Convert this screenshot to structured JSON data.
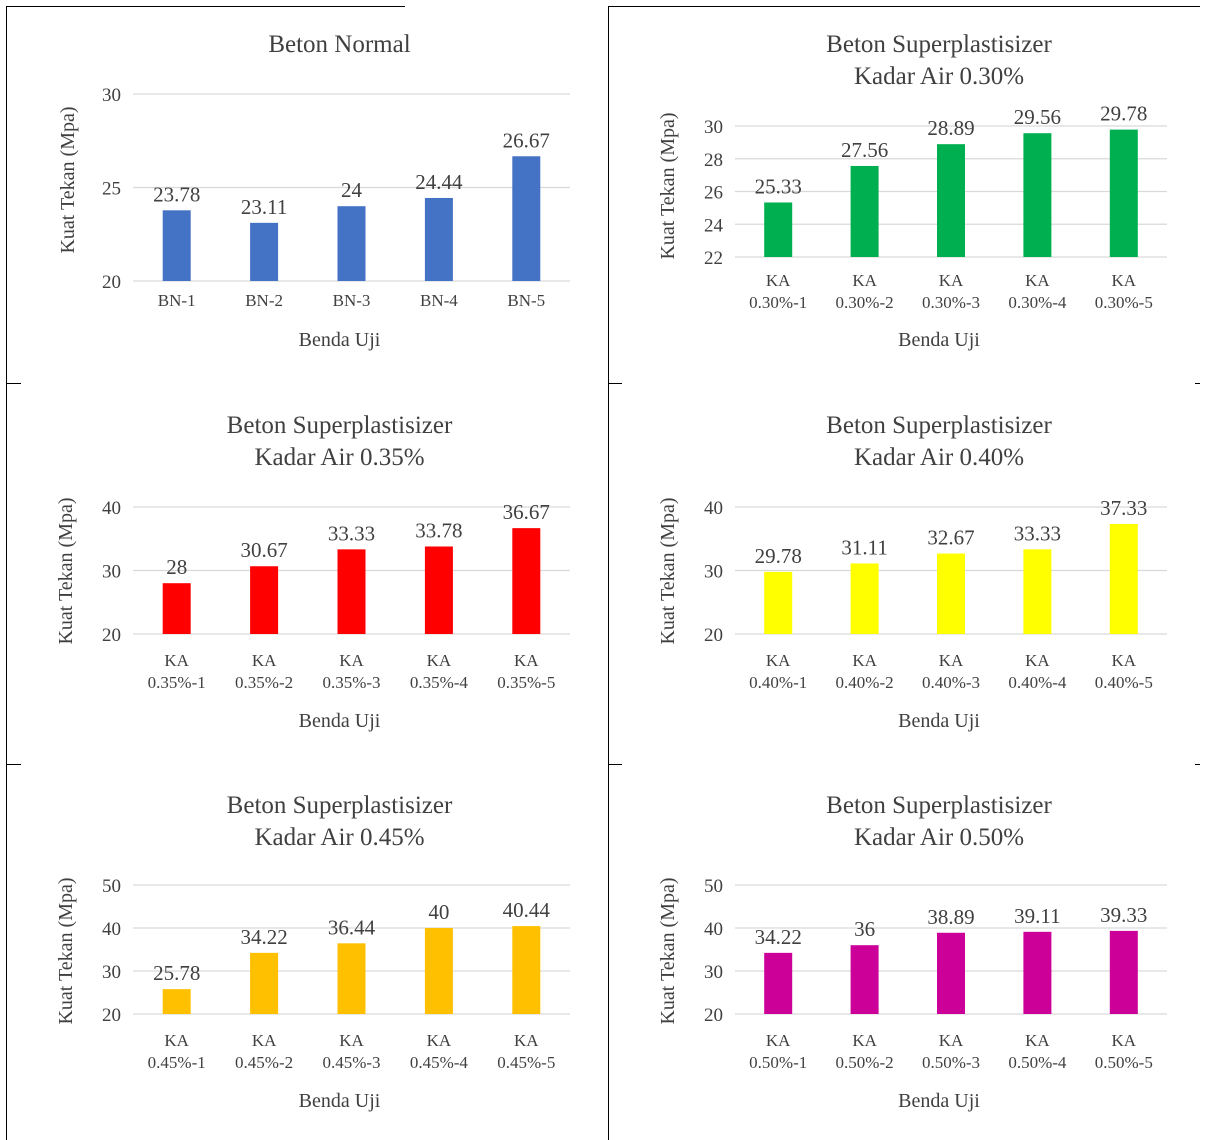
{
  "chart_data": [
    {
      "type": "bar",
      "title": [
        "Beton Normal"
      ],
      "xlabel": "Benda Uji",
      "ylabel": "Kuat Tekan (Mpa)",
      "ylim": [
        20,
        30
      ],
      "yticks": [
        20,
        25,
        30
      ],
      "grid": true,
      "legend": "none",
      "color": "#4472C4",
      "categories": [
        [
          "BN-1"
        ],
        [
          "BN-2"
        ],
        [
          "BN-3"
        ],
        [
          "BN-4"
        ],
        [
          "BN-5"
        ]
      ],
      "values": [
        23.78,
        23.11,
        24,
        24.44,
        26.67
      ],
      "data_labels": [
        "23.78",
        "23.11",
        "24",
        "24.44",
        "26.67"
      ]
    },
    {
      "type": "bar",
      "title": [
        "Beton Superplastisizer",
        "Kadar Air 0.30%"
      ],
      "xlabel": "Benda Uji",
      "ylabel": "Kuat Tekan (Mpa)",
      "ylim": [
        22,
        30
      ],
      "yticks": [
        22,
        24,
        26,
        28,
        30
      ],
      "grid": true,
      "legend": "none",
      "color": "#00B050",
      "categories": [
        [
          "KA",
          "0.30%-1"
        ],
        [
          "KA",
          "0.30%-2"
        ],
        [
          "KA",
          "0.30%-3"
        ],
        [
          "KA",
          "0.30%-4"
        ],
        [
          "KA",
          "0.30%-5"
        ]
      ],
      "values": [
        25.33,
        27.56,
        28.89,
        29.56,
        29.78
      ],
      "data_labels": [
        "25.33",
        "27.56",
        "28.89",
        "29.56",
        "29.78"
      ]
    },
    {
      "type": "bar",
      "title": [
        "Beton Superplastisizer",
        "Kadar Air 0.35%"
      ],
      "xlabel": "Benda Uji",
      "ylabel": "Kuat Tekan (Mpa)",
      "ylim": [
        20,
        40
      ],
      "yticks": [
        20,
        30,
        40
      ],
      "grid": true,
      "legend": "none",
      "color": "#FF0000",
      "categories": [
        [
          "KA",
          "0.35%-1"
        ],
        [
          "KA",
          "0.35%-2"
        ],
        [
          "KA",
          "0.35%-3"
        ],
        [
          "KA",
          "0.35%-4"
        ],
        [
          "KA",
          "0.35%-5"
        ]
      ],
      "values": [
        28,
        30.67,
        33.33,
        33.78,
        36.67
      ],
      "data_labels": [
        "28",
        "30.67",
        "33.33",
        "33.78",
        "36.67"
      ]
    },
    {
      "type": "bar",
      "title": [
        "Beton Superplastisizer",
        "Kadar Air 0.40%"
      ],
      "xlabel": "Benda Uji",
      "ylabel": "Kuat Tekan (Mpa)",
      "ylim": [
        20,
        40
      ],
      "yticks": [
        20,
        30,
        40
      ],
      "grid": true,
      "legend": "none",
      "color": "#FFFF00",
      "categories": [
        [
          "KA",
          "0.40%-1"
        ],
        [
          "KA",
          "0.40%-2"
        ],
        [
          "KA",
          "0.40%-3"
        ],
        [
          "KA",
          "0.40%-4"
        ],
        [
          "KA",
          "0.40%-5"
        ]
      ],
      "values": [
        29.78,
        31.11,
        32.67,
        33.33,
        37.33
      ],
      "data_labels": [
        "29.78",
        "31.11",
        "32.67",
        "33.33",
        "37.33"
      ]
    },
    {
      "type": "bar",
      "title": [
        "Beton Superplastisizer",
        "Kadar Air 0.45%"
      ],
      "xlabel": "Benda Uji",
      "ylabel": "Kuat Tekan (Mpa)",
      "ylim": [
        20,
        50
      ],
      "yticks": [
        20,
        30,
        40,
        50
      ],
      "grid": true,
      "legend": "none",
      "color": "#FFC000",
      "categories": [
        [
          "KA",
          "0.45%-1"
        ],
        [
          "KA",
          "0.45%-2"
        ],
        [
          "KA",
          "0.45%-3"
        ],
        [
          "KA",
          "0.45%-4"
        ],
        [
          "KA",
          "0.45%-5"
        ]
      ],
      "values": [
        25.78,
        34.22,
        36.44,
        40,
        40.44
      ],
      "data_labels": [
        "25.78",
        "34.22",
        "36.44",
        "40",
        "40.44"
      ]
    },
    {
      "type": "bar",
      "title": [
        "Beton Superplastisizer",
        "Kadar Air 0.50%"
      ],
      "xlabel": "Benda Uji",
      "ylabel": "Kuat Tekan (Mpa)",
      "ylim": [
        20,
        50
      ],
      "yticks": [
        20,
        30,
        40,
        50
      ],
      "grid": true,
      "legend": "none",
      "color": "#CC0099",
      "categories": [
        [
          "KA",
          "0.50%-1"
        ],
        [
          "KA",
          "0.50%-2"
        ],
        [
          "KA",
          "0.50%-3"
        ],
        [
          "KA",
          "0.50%-4"
        ],
        [
          "KA",
          "0.50%-5"
        ]
      ],
      "values": [
        34.22,
        36,
        38.89,
        39.11,
        39.33
      ],
      "data_labels": [
        "34.22",
        "36",
        "38.89",
        "39.11",
        "39.33"
      ]
    }
  ]
}
